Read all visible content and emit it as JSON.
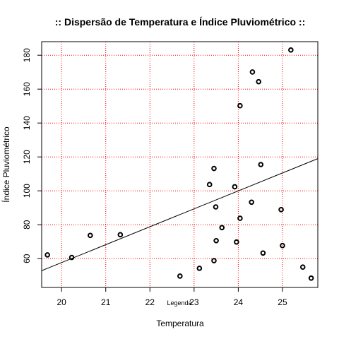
{
  "chart_data": {
    "type": "scatter",
    "title": ":: Dispersão de Temperatura e Índice Pluviométrico ::",
    "xlabel": "Temperatura",
    "ylabel": "Índice Pluviométrico",
    "legend_text": "Legenda",
    "xlim": [
      19.55,
      25.8
    ],
    "ylim": [
      43,
      188
    ],
    "x_ticks": [
      20,
      21,
      22,
      23,
      24,
      25
    ],
    "y_ticks": [
      60,
      80,
      100,
      120,
      140,
      160,
      180
    ],
    "grid": true,
    "grid_color": "#ff0000",
    "point_color": "#000000",
    "points": [
      {
        "x": 19.68,
        "y": 62.2
      },
      {
        "x": 20.23,
        "y": 60.7
      },
      {
        "x": 20.65,
        "y": 73.7
      },
      {
        "x": 21.33,
        "y": 74.1
      },
      {
        "x": 22.68,
        "y": 49.7
      },
      {
        "x": 23.12,
        "y": 54.3
      },
      {
        "x": 23.35,
        "y": 103.7
      },
      {
        "x": 23.45,
        "y": 113.2
      },
      {
        "x": 23.45,
        "y": 58.8
      },
      {
        "x": 23.49,
        "y": 90.5
      },
      {
        "x": 23.5,
        "y": 70.6
      },
      {
        "x": 23.63,
        "y": 78.3
      },
      {
        "x": 23.92,
        "y": 102.4
      },
      {
        "x": 23.96,
        "y": 69.8
      },
      {
        "x": 24.04,
        "y": 150.2
      },
      {
        "x": 24.04,
        "y": 83.8
      },
      {
        "x": 24.3,
        "y": 93.3
      },
      {
        "x": 24.32,
        "y": 170.1
      },
      {
        "x": 24.46,
        "y": 164.4
      },
      {
        "x": 24.51,
        "y": 115.5
      },
      {
        "x": 24.56,
        "y": 63.3
      },
      {
        "x": 24.97,
        "y": 88.9
      },
      {
        "x": 25.0,
        "y": 67.7
      },
      {
        "x": 25.19,
        "y": 183.1
      },
      {
        "x": 25.46,
        "y": 55.0
      },
      {
        "x": 25.65,
        "y": 48.5
      }
    ],
    "regression_line": {
      "x": [
        19.55,
        25.8
      ],
      "y": [
        52.9,
        119.0
      ]
    }
  }
}
